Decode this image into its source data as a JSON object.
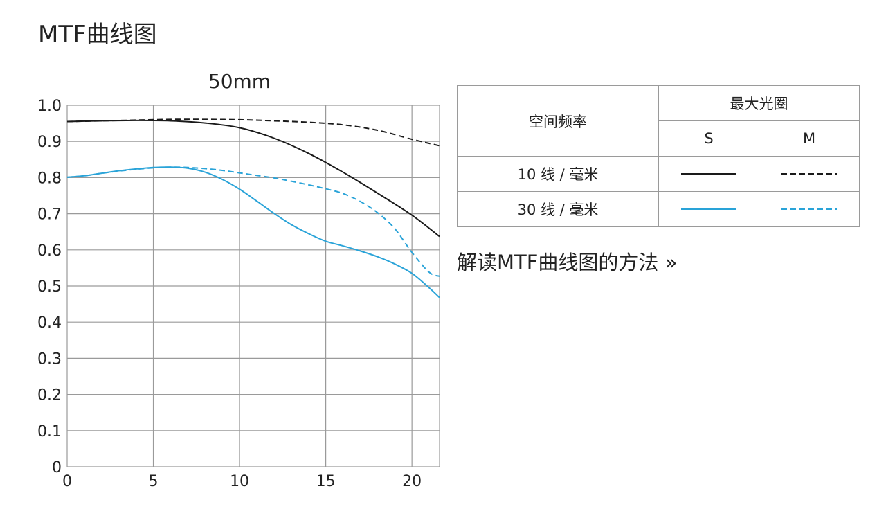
{
  "page_title": "MTF曲线图",
  "link_text": "解读MTF曲线图的方法 »",
  "legend": {
    "col_freq": "空间频率",
    "col_group": "最大光圈",
    "col_s": "S",
    "col_m": "M",
    "row1_label": "10 线 / 毫米",
    "row2_label": "30 线 / 毫米"
  },
  "colors": {
    "black": "#1a1a1a",
    "blue": "#29a3d8",
    "grid": "#9a9a9a"
  },
  "chart_data": {
    "type": "line",
    "title": "50mm",
    "xlim": [
      0,
      21.6
    ],
    "ylim": [
      0,
      1.0
    ],
    "x_ticks": [
      0,
      5,
      10,
      15,
      20
    ],
    "x_tick_labels": [
      "0",
      "5",
      "10",
      "15",
      "20"
    ],
    "y_ticks": [
      0,
      0.1,
      0.2,
      0.3,
      0.4,
      0.5,
      0.6,
      0.7,
      0.8,
      0.9,
      1.0
    ],
    "y_tick_labels": [
      "0",
      "0.1",
      "0.2",
      "0.3",
      "0.4",
      "0.5",
      "0.6",
      "0.7",
      "0.8",
      "0.9",
      "1.0"
    ],
    "grid": true,
    "series": [
      {
        "frequency": "10 线 / 毫米",
        "direction": "S",
        "color": "#1a1a1a",
        "style": "solid",
        "x": [
          0,
          2,
          4,
          6,
          8,
          10,
          12,
          14,
          16,
          18,
          20,
          21.6
        ],
        "y": [
          0.955,
          0.957,
          0.958,
          0.957,
          0.951,
          0.938,
          0.909,
          0.867,
          0.815,
          0.757,
          0.696,
          0.637
        ]
      },
      {
        "frequency": "10 线 / 毫米",
        "direction": "M",
        "color": "#1a1a1a",
        "style": "dashed",
        "x": [
          0,
          2,
          4,
          6,
          8,
          10,
          12,
          14,
          16,
          18,
          20,
          21.6
        ],
        "y": [
          0.955,
          0.957,
          0.959,
          0.961,
          0.961,
          0.96,
          0.957,
          0.953,
          0.946,
          0.931,
          0.906,
          0.888
        ]
      },
      {
        "frequency": "30 线 / 毫米",
        "direction": "S",
        "color": "#29a3d8",
        "style": "solid",
        "x": [
          0,
          1,
          2,
          3,
          4,
          5,
          6,
          7,
          8,
          9,
          10,
          11,
          12,
          13,
          14,
          15,
          16,
          17,
          18,
          19,
          20,
          21,
          21.6
        ],
        "y": [
          0.801,
          0.805,
          0.812,
          0.819,
          0.824,
          0.828,
          0.829,
          0.826,
          0.815,
          0.795,
          0.768,
          0.735,
          0.701,
          0.67,
          0.645,
          0.624,
          0.611,
          0.597,
          0.581,
          0.561,
          0.535,
          0.495,
          0.468
        ]
      },
      {
        "frequency": "30 线 / 毫米",
        "direction": "M",
        "color": "#29a3d8",
        "style": "dashed",
        "x": [
          0,
          1,
          2,
          3,
          4,
          5,
          6,
          7,
          8,
          9,
          10,
          11,
          12,
          13,
          14,
          15,
          16,
          17,
          18,
          19,
          20,
          21,
          21.6
        ],
        "y": [
          0.801,
          0.805,
          0.812,
          0.818,
          0.823,
          0.827,
          0.829,
          0.828,
          0.825,
          0.82,
          0.813,
          0.806,
          0.799,
          0.79,
          0.78,
          0.769,
          0.756,
          0.734,
          0.703,
          0.659,
          0.593,
          0.538,
          0.527
        ]
      }
    ]
  }
}
